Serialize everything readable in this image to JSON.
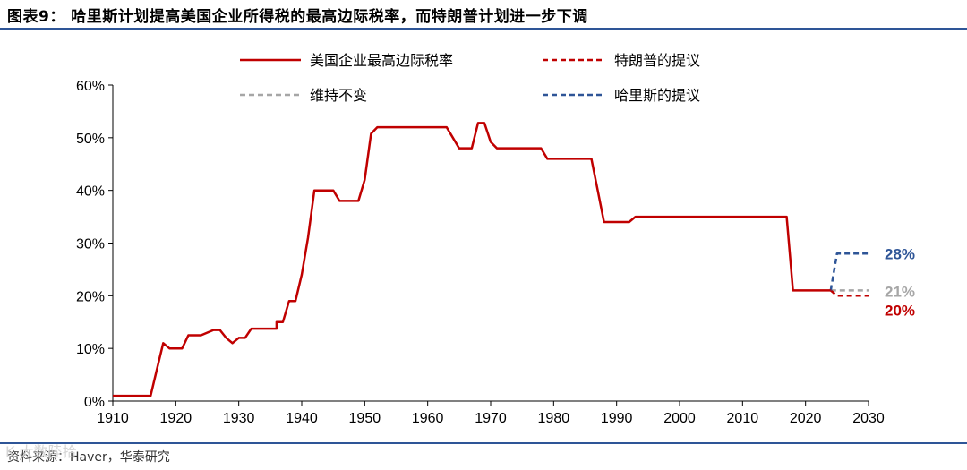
{
  "title": "图表9： 哈里斯计划提高美国企业所得税的最高边际税率，而特朗普计划进一步下调",
  "source": "资料来源：Haver，华泰研究",
  "watermark": "K 大数陸拾",
  "colors": {
    "main": "#c00000",
    "trump": "#c00000",
    "unchanged": "#a6a6a6",
    "harris": "#2e5597",
    "rule": "#2e5597"
  },
  "chart_data": {
    "type": "line",
    "title": "",
    "xlabel": "",
    "ylabel": "",
    "xlim": [
      1910,
      2030
    ],
    "ylim": [
      0,
      60
    ],
    "x_ticks": [
      1910,
      1920,
      1930,
      1940,
      1950,
      1960,
      1970,
      1980,
      1990,
      2000,
      2010,
      2020,
      2030
    ],
    "y_ticks": [
      0,
      10,
      20,
      30,
      40,
      50,
      60
    ],
    "y_tick_labels": [
      "0%",
      "10%",
      "20%",
      "30%",
      "40%",
      "50%",
      "60%"
    ],
    "grid": false,
    "legend": "top",
    "series": [
      {
        "name": "美国企业最高边际税率",
        "style": "solid",
        "color": "#c00000",
        "points": [
          [
            1910,
            1
          ],
          [
            1916,
            1
          ],
          [
            1917,
            6
          ],
          [
            1918,
            11
          ],
          [
            1919,
            10
          ],
          [
            1921,
            10
          ],
          [
            1922,
            12.5
          ],
          [
            1924,
            12.5
          ],
          [
            1926,
            13.5
          ],
          [
            1927,
            13.5
          ],
          [
            1928,
            12
          ],
          [
            1929,
            11
          ],
          [
            1930,
            12
          ],
          [
            1931,
            12
          ],
          [
            1932,
            13.75
          ],
          [
            1936,
            13.75
          ],
          [
            1936,
            15
          ],
          [
            1937,
            15
          ],
          [
            1938,
            19
          ],
          [
            1939,
            19
          ],
          [
            1940,
            24
          ],
          [
            1941,
            31
          ],
          [
            1942,
            40
          ],
          [
            1945,
            40
          ],
          [
            1946,
            38
          ],
          [
            1949,
            38
          ],
          [
            1950,
            42
          ],
          [
            1951,
            50.75
          ],
          [
            1952,
            52
          ],
          [
            1963,
            52
          ],
          [
            1964,
            50
          ],
          [
            1965,
            48
          ],
          [
            1967,
            48
          ],
          [
            1968,
            52.8
          ],
          [
            1969,
            52.8
          ],
          [
            1970,
            49.2
          ],
          [
            1971,
            48
          ],
          [
            1978,
            48
          ],
          [
            1979,
            46
          ],
          [
            1986,
            46
          ],
          [
            1987,
            40
          ],
          [
            1988,
            34
          ],
          [
            1992,
            34
          ],
          [
            1993,
            35
          ],
          [
            2017,
            35
          ],
          [
            2018,
            21
          ],
          [
            2024,
            21
          ]
        ]
      },
      {
        "name": "特朗普的提议",
        "style": "dashed",
        "color": "#c00000",
        "points": [
          [
            2024,
            21
          ],
          [
            2025,
            20
          ],
          [
            2030,
            20
          ]
        ],
        "end_label": "20%"
      },
      {
        "name": "维持不变",
        "style": "dashed",
        "color": "#a6a6a6",
        "points": [
          [
            2024,
            21
          ],
          [
            2030,
            21
          ]
        ],
        "end_label": "21%"
      },
      {
        "name": "哈里斯的提议",
        "style": "dashed",
        "color": "#2e5597",
        "points": [
          [
            2024,
            21
          ],
          [
            2025,
            28
          ],
          [
            2030,
            28
          ]
        ],
        "end_label": "28%"
      }
    ]
  }
}
